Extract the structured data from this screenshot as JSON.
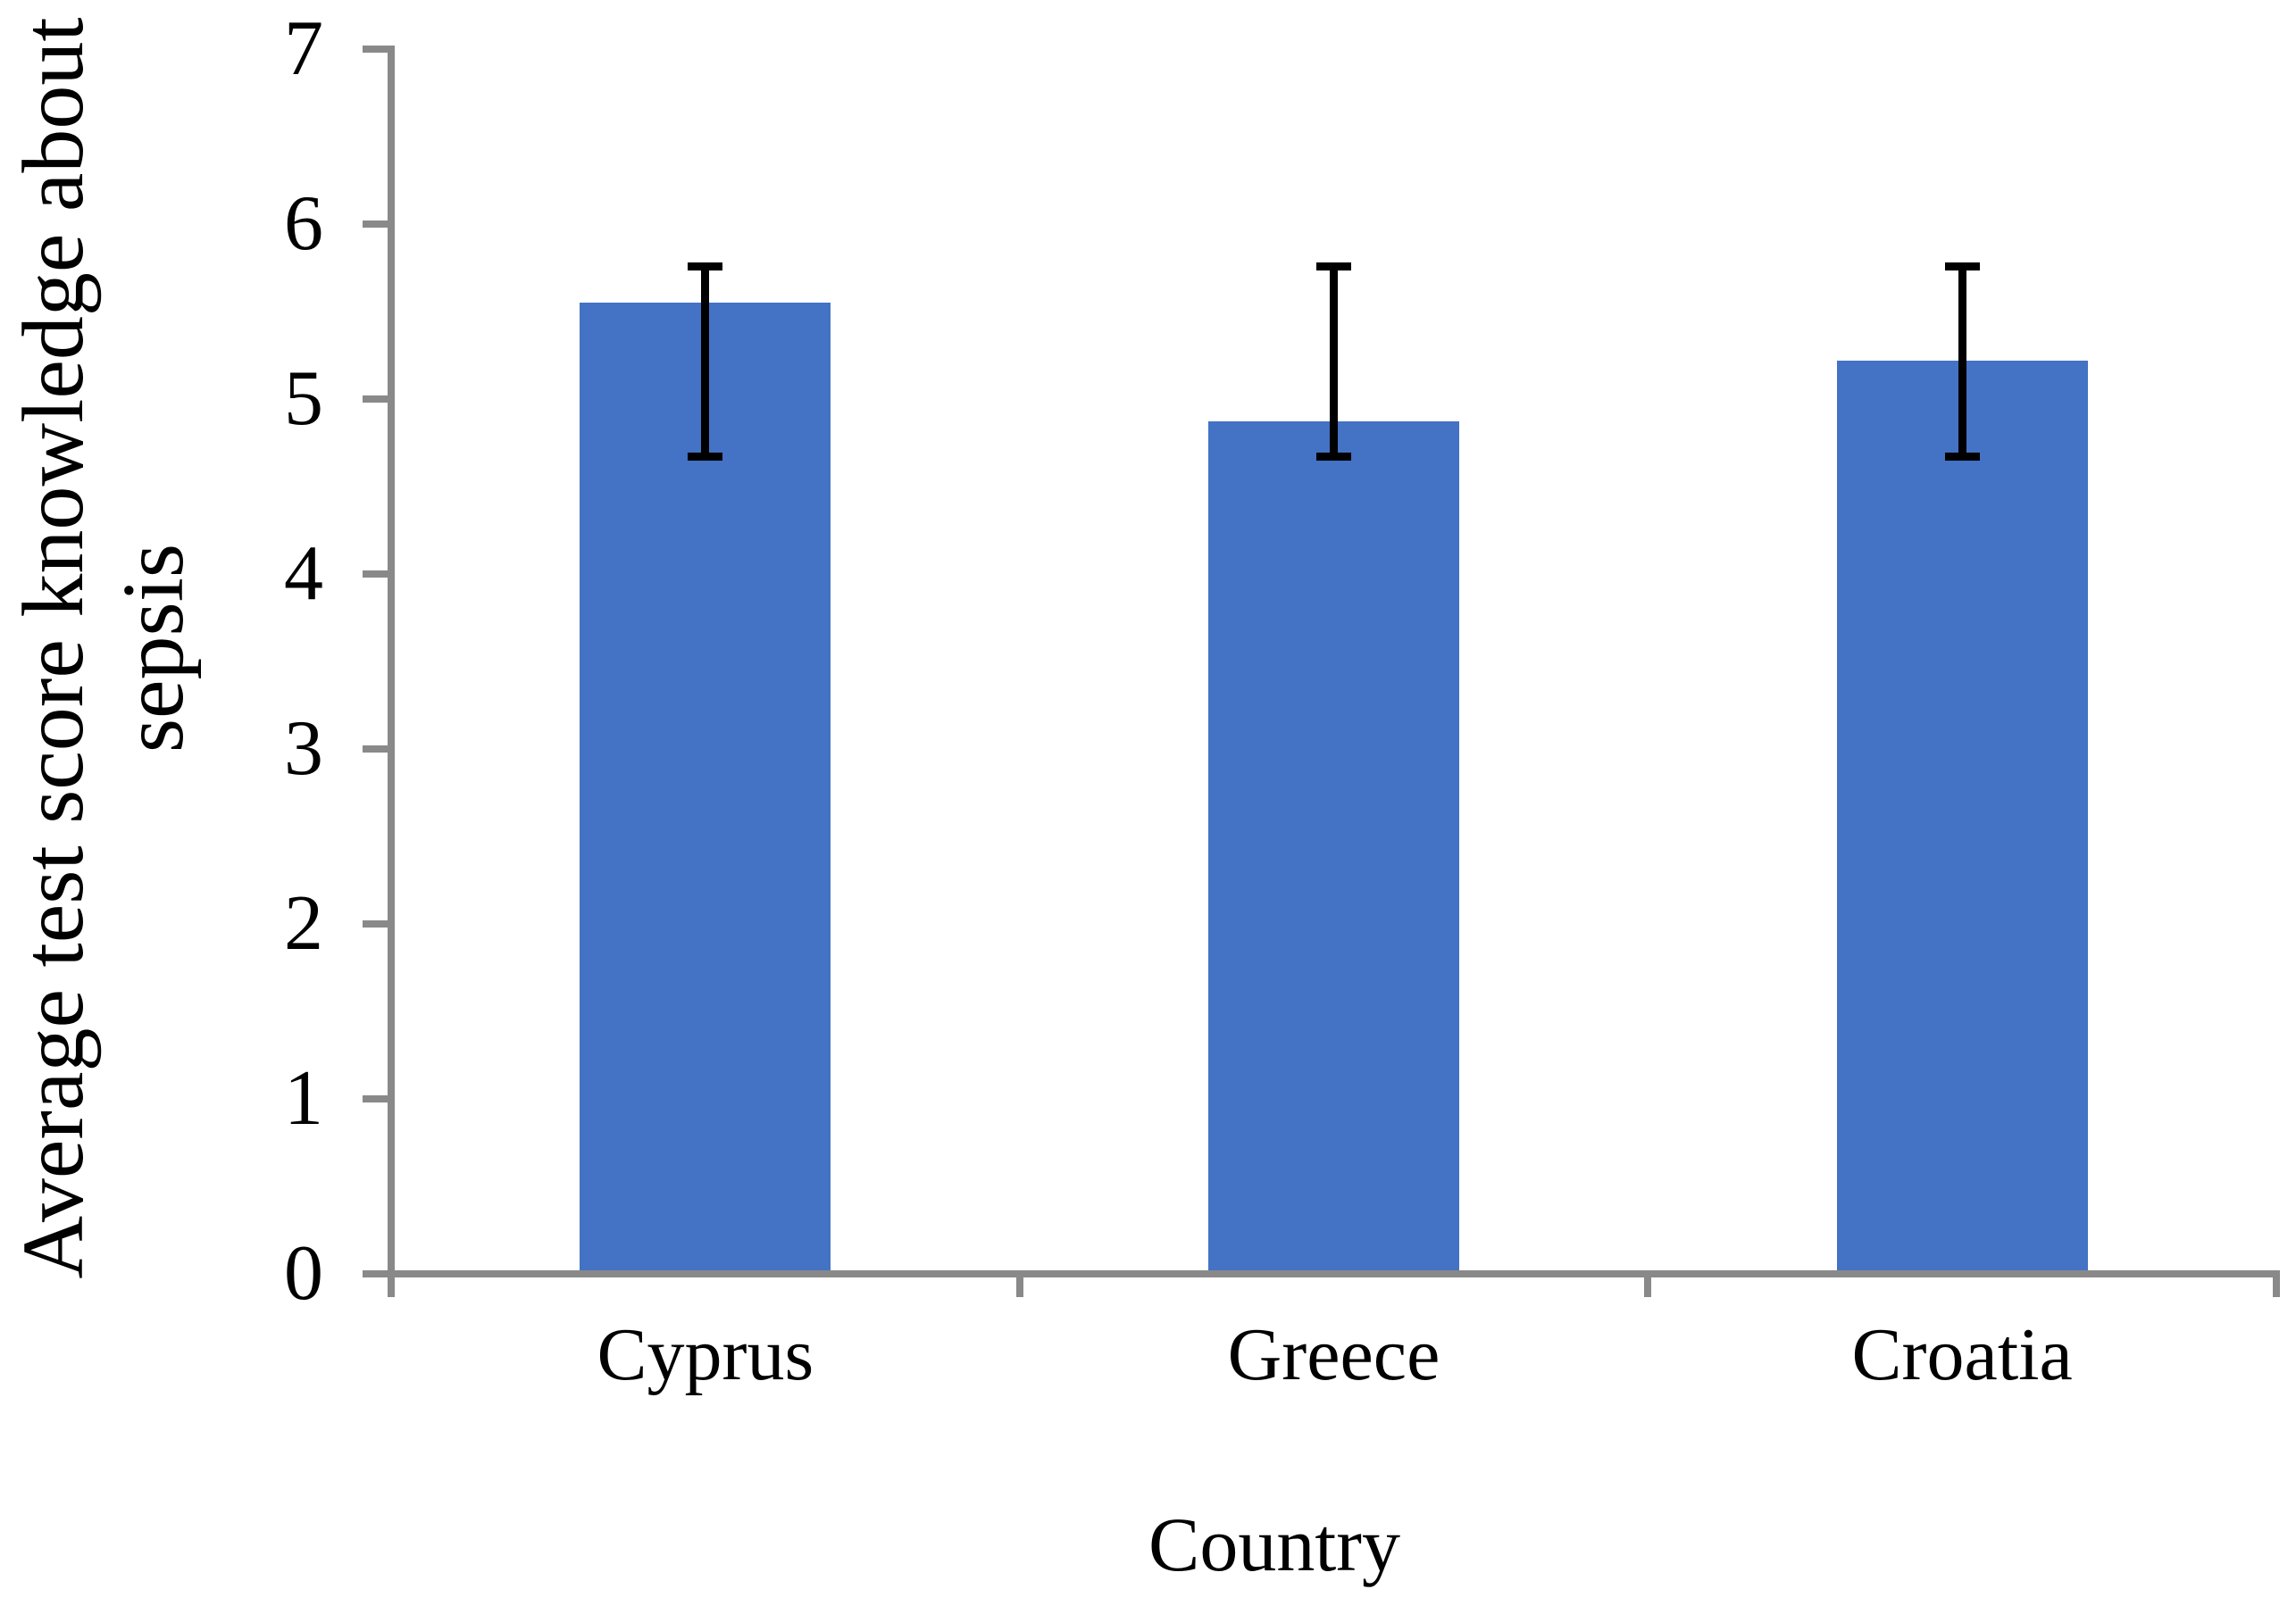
{
  "chart_data": {
    "type": "bar",
    "title": "",
    "categories": [
      "Cyprus",
      "Greece",
      "Croatia"
    ],
    "values": [
      5.55,
      4.87,
      5.22
    ],
    "error_bars": {
      "high": [
        5.76,
        5.76,
        5.76
      ],
      "low": [
        4.67,
        4.67,
        4.67
      ]
    },
    "xlabel": "Country",
    "ylabel": "Average test score knowledge about sepsis",
    "ylabel_lines": [
      "Average test score knowledge about",
      "sepsis"
    ],
    "ylim": [
      0,
      7
    ],
    "yticks": [
      0,
      1,
      2,
      3,
      4,
      5,
      6,
      7
    ],
    "grid": false,
    "legend": "none",
    "colors": {
      "bar_fill": "#4472C4",
      "axis": "#898989",
      "error_bar": "#000000",
      "text": "#000000",
      "background": "#FFFFFF"
    }
  }
}
